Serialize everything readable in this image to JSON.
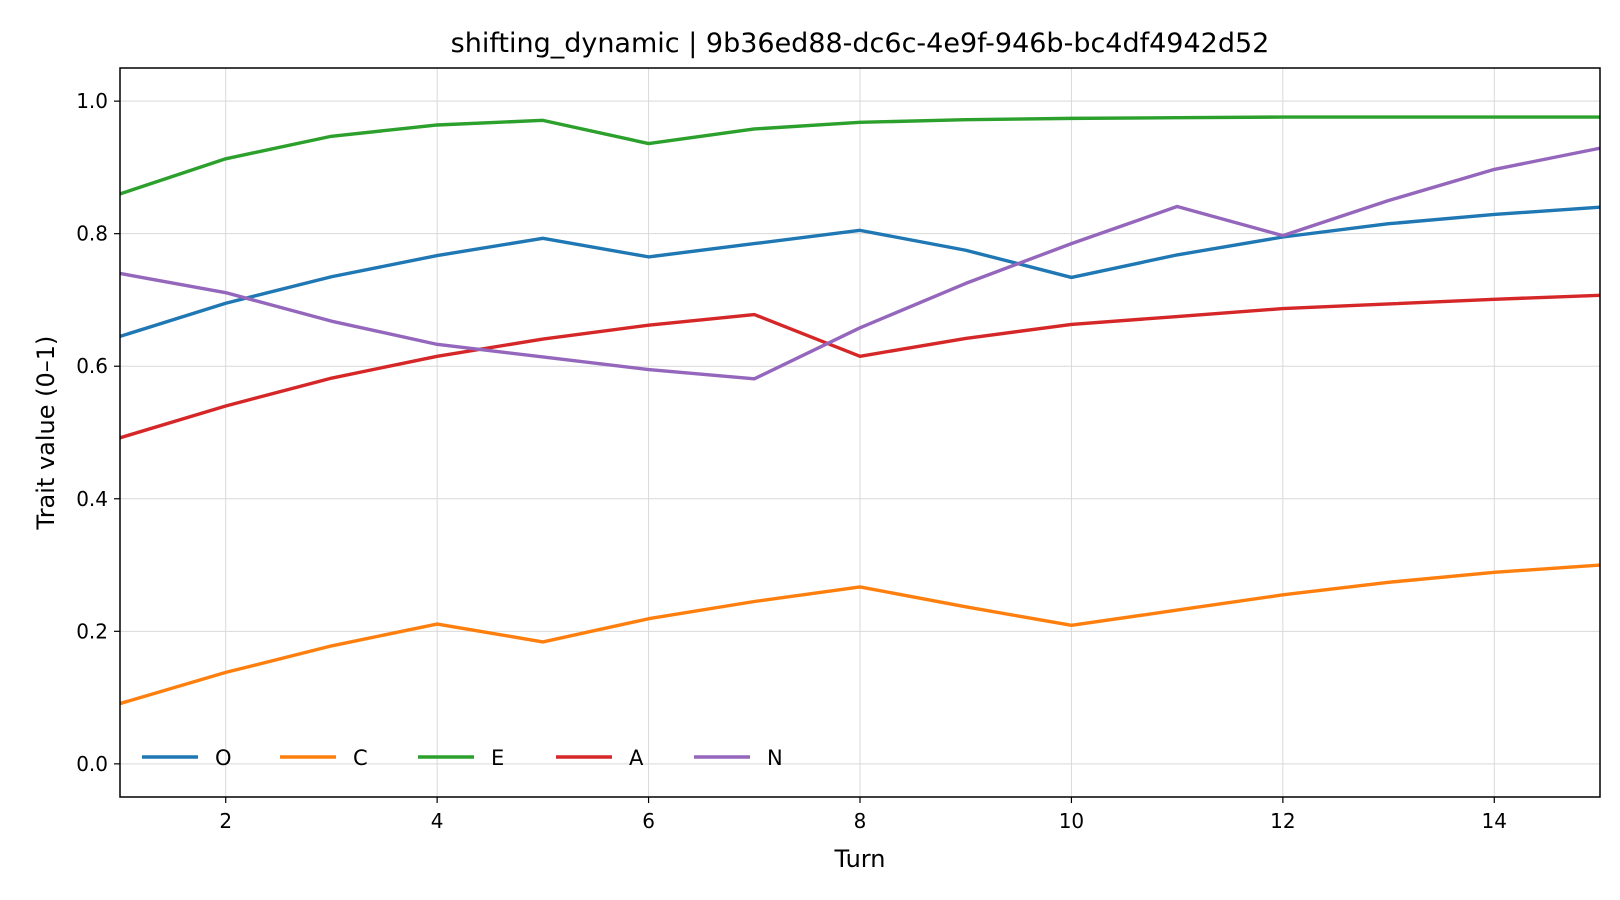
{
  "chart_data": {
    "type": "line",
    "title": "shifting_dynamic | 9b36ed88-dc6c-4e9f-946b-bc4df4942d52",
    "xlabel": "Turn",
    "ylabel": "Trait value (0–1)",
    "xlim": [
      1,
      15
    ],
    "ylim": [
      -0.05,
      1.05
    ],
    "xticks": [
      2,
      4,
      6,
      8,
      10,
      12,
      14
    ],
    "yticks": [
      0.0,
      0.2,
      0.4,
      0.6,
      0.8,
      1.0
    ],
    "ytick_labels": [
      "0.0",
      "0.2",
      "0.4",
      "0.6",
      "0.8",
      "1.0"
    ],
    "grid": true,
    "legend": "lower-left",
    "x": [
      1,
      2,
      3,
      4,
      5,
      6,
      7,
      8,
      9,
      10,
      11,
      12,
      13,
      14,
      15
    ],
    "series": [
      {
        "name": "O",
        "color": "#1f77b4",
        "values": [
          0.645,
          0.695,
          0.735,
          0.767,
          0.793,
          0.765,
          0.785,
          0.805,
          0.775,
          0.734,
          0.768,
          0.795,
          0.815,
          0.829,
          0.84
        ]
      },
      {
        "name": "C",
        "color": "#ff7f0e",
        "values": [
          0.091,
          0.138,
          0.178,
          0.211,
          0.184,
          0.219,
          0.245,
          0.267,
          0.237,
          0.209,
          0.232,
          0.255,
          0.274,
          0.289,
          0.3
        ]
      },
      {
        "name": "E",
        "color": "#2ca02c",
        "values": [
          0.86,
          0.913,
          0.947,
          0.964,
          0.971,
          0.936,
          0.958,
          0.968,
          0.972,
          0.974,
          0.975,
          0.976,
          0.976,
          0.976,
          0.976
        ]
      },
      {
        "name": "A",
        "color": "#d62728",
        "values": [
          0.492,
          0.54,
          0.582,
          0.615,
          0.641,
          0.662,
          0.678,
          0.615,
          0.642,
          0.663,
          0.675,
          0.687,
          0.694,
          0.701,
          0.707
        ]
      },
      {
        "name": "N",
        "color": "#9467bd",
        "values": [
          0.74,
          0.711,
          0.668,
          0.633,
          0.614,
          0.595,
          0.581,
          0.658,
          0.725,
          0.785,
          0.841,
          0.797,
          0.85,
          0.897,
          0.929
        ]
      }
    ]
  }
}
